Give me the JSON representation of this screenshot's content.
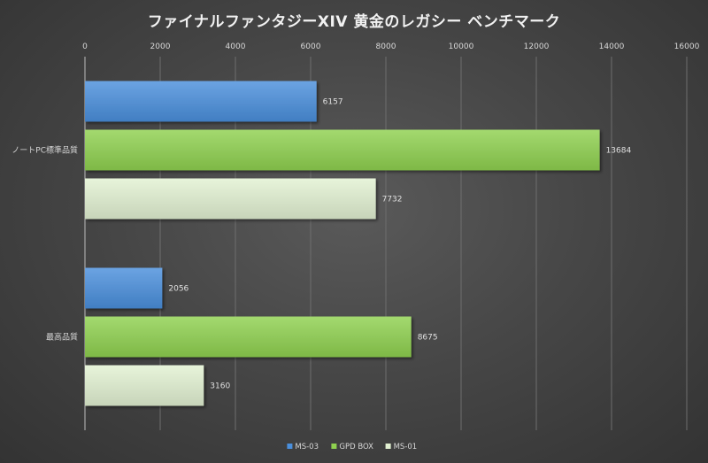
{
  "chart_data": {
    "type": "bar",
    "orientation": "horizontal",
    "title": "ファイナルファンタジーXIV 黄金のレガシー ベンチマーク",
    "categories": [
      "ノートPC標準品質",
      "最高品質"
    ],
    "series": [
      {
        "name": "MS-03",
        "values": [
          6157,
          2056
        ],
        "color": "#4a8fdc"
      },
      {
        "name": "GPD BOX",
        "values": [
          13684,
          8675
        ],
        "color": "#8fd14f"
      },
      {
        "name": "MS-01",
        "values": [
          7732,
          3160
        ],
        "color": "#e2f1d2"
      }
    ],
    "xlim": [
      0,
      16000
    ],
    "x_ticks": [
      0,
      2000,
      4000,
      6000,
      8000,
      10000,
      12000,
      14000,
      16000
    ],
    "x_axis_position": "top",
    "grid": true,
    "legend_position": "bottom",
    "data_labels": true
  }
}
